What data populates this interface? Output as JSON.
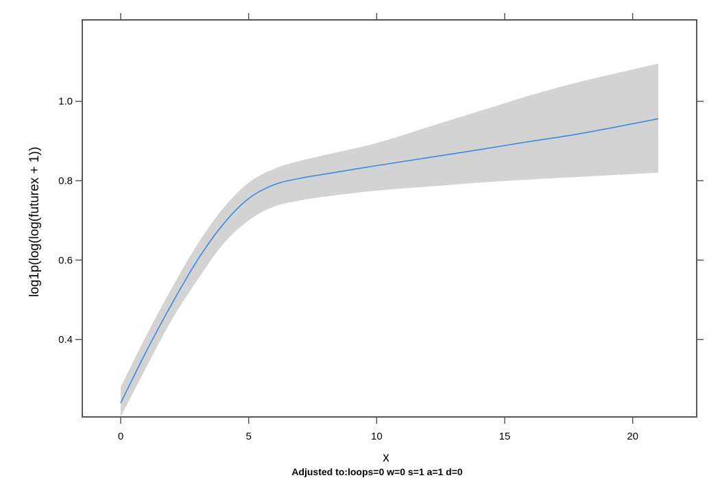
{
  "chart_data": {
    "type": "line",
    "xlabel": "x",
    "ylabel": "log1p(log(log(futurex + 1))",
    "subtitle": "Adjusted to:loops=0 w=0 s=1 a=1 d=0",
    "xlim": [
      -1.5,
      22.5
    ],
    "ylim": [
      0.205,
      1.205
    ],
    "x_ticks": [
      0,
      5,
      10,
      15,
      20
    ],
    "x_tick_labels": [
      "0",
      "5",
      "10",
      "15",
      "20"
    ],
    "y_ticks": [
      0.4,
      0.6,
      0.8,
      1.0
    ],
    "y_tick_labels": [
      "0.4",
      "0.6",
      "0.8",
      "1.0"
    ],
    "grid": false,
    "colors": {
      "line": "#3a8be0",
      "band": "#d3d3d3",
      "axis": "#555555"
    },
    "series": [
      {
        "x": [
          0,
          1,
          2,
          3,
          4,
          5,
          6,
          7,
          8,
          10,
          12,
          14,
          16,
          18,
          21
        ],
        "y": [
          0.24,
          0.37,
          0.49,
          0.6,
          0.69,
          0.755,
          0.79,
          0.806,
          0.817,
          0.838,
          0.858,
          0.878,
          0.899,
          0.919,
          0.956
        ],
        "lower": [
          0.205,
          0.33,
          0.45,
          0.55,
          0.64,
          0.7,
          0.735,
          0.75,
          0.76,
          0.775,
          0.785,
          0.795,
          0.803,
          0.81,
          0.82
        ],
        "upper": [
          0.28,
          0.41,
          0.53,
          0.64,
          0.73,
          0.795,
          0.83,
          0.85,
          0.865,
          0.895,
          0.935,
          0.975,
          1.015,
          1.05,
          1.095
        ]
      }
    ]
  }
}
